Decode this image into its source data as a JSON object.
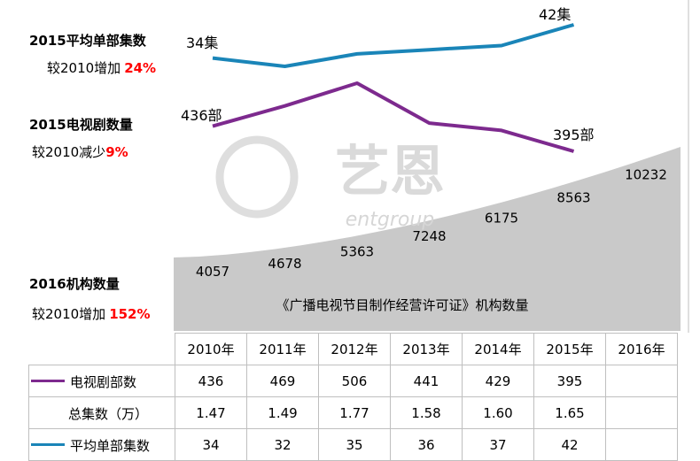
{
  "annotations": {
    "avg_title": "2015平均单部集数",
    "avg_sub": "较2010增加",
    "avg_pct": "24%",
    "drama_title": "2015电视剧数量",
    "drama_sub": "较2010减少",
    "drama_pct": "9%",
    "org_title": "2016机构数量",
    "org_sub": "较2010增加",
    "org_pct": "152%"
  },
  "watermark": {
    "text": "艺恩",
    "subtext": "entgroup"
  },
  "colors": {
    "avg": "#1a85b8",
    "drama": "#7d2a8e",
    "area": "#c9c9c9",
    "red": "#ff0000"
  },
  "chart_data": [
    {
      "type": "line",
      "series": [
        {
          "name": "平均单部集数",
          "values": [
            34,
            32,
            35,
            36,
            37,
            42
          ]
        }
      ],
      "x": [
        "2010年",
        "2011年",
        "2012年",
        "2013年",
        "2014年",
        "2015年"
      ],
      "point_labels": {
        "first": "34集",
        "last": "42集"
      }
    },
    {
      "type": "line",
      "series": [
        {
          "name": "电视剧部数",
          "values": [
            436,
            469,
            506,
            441,
            429,
            395
          ]
        }
      ],
      "x": [
        "2010年",
        "2011年",
        "2012年",
        "2013年",
        "2014年",
        "2015年"
      ],
      "point_labels": {
        "first": "436部",
        "last": "395部"
      }
    },
    {
      "type": "area",
      "title": "《广播电视节目制作经营许可证》机构数量",
      "x": [
        "2010年",
        "2011年",
        "2012年",
        "2013年",
        "2014年",
        "2015年",
        "2016年"
      ],
      "values": [
        4057,
        4678,
        5363,
        7248,
        6175,
        8563,
        10232
      ]
    },
    {
      "type": "table",
      "columns": [
        "2010年",
        "2011年",
        "2012年",
        "2013年",
        "2014年",
        "2015年",
        "2016年"
      ],
      "rows": [
        {
          "name": "电视剧部数",
          "values": [
            "436",
            "469",
            "506",
            "441",
            "429",
            "395",
            ""
          ]
        },
        {
          "name": "总集数（万）",
          "values": [
            "1.47",
            "1.49",
            "1.77",
            "1.58",
            "1.60",
            "1.65",
            ""
          ]
        },
        {
          "name": "平均单部集数",
          "values": [
            "34",
            "32",
            "35",
            "36",
            "37",
            "42",
            ""
          ]
        }
      ]
    }
  ]
}
